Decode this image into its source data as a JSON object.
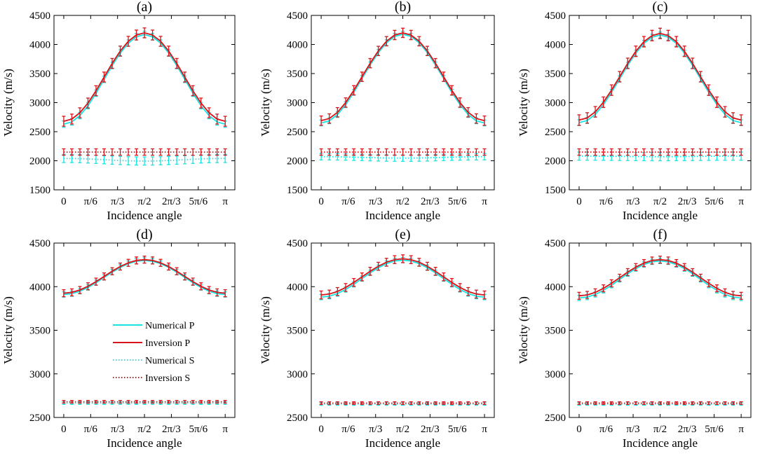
{
  "figure": {
    "x_tick_labels": [
      "0",
      "π/6",
      "π/3",
      "π/2",
      "2π/3",
      "5π/6",
      "π"
    ],
    "legend": [
      {
        "label": "Numerical P",
        "color": "#19e3e0",
        "style": "solid"
      },
      {
        "label": "Inversion P",
        "color": "#d9141a",
        "style": "solid"
      },
      {
        "label": "Numerical S",
        "color": "#19e3e0",
        "style": "dotted"
      },
      {
        "label": "Inversion S",
        "color": "#d9141a",
        "style": "dotted"
      }
    ],
    "colors": {
      "numerical": "#19e3e0",
      "inversion": "#d9141a"
    }
  },
  "chart_data": [
    {
      "type": "line",
      "title": "(a)",
      "xlabel": "Incidence angle",
      "ylabel": "Velocity (m/s)",
      "xlim": [
        -0.19,
        3.33
      ],
      "ylim": [
        1500,
        4500
      ],
      "yticks": [
        1500,
        2000,
        2500,
        3000,
        3500,
        4000,
        4500
      ],
      "P": {
        "min": 2680,
        "max": 4200,
        "num_offset": -50,
        "err_num": 55,
        "err_inv": 85
      },
      "S": {
        "num": 2040,
        "num_var": 45,
        "inv": 2150,
        "err_num": 70,
        "err_inv": 55
      },
      "legend": false
    },
    {
      "type": "line",
      "title": "(b)",
      "xlabel": "Incidence angle",
      "ylabel": "Velocity (m/s)",
      "xlim": [
        -0.19,
        3.33
      ],
      "ylim": [
        1500,
        4500
      ],
      "yticks": [
        1500,
        2000,
        2500,
        3000,
        3500,
        4000,
        4500
      ],
      "P": {
        "min": 2690,
        "max": 4200,
        "num_offset": -40,
        "err_num": 50,
        "err_inv": 80
      },
      "S": {
        "num": 2070,
        "num_var": 25,
        "inv": 2150,
        "err_num": 55,
        "err_inv": 55
      },
      "legend": false
    },
    {
      "type": "line",
      "title": "(c)",
      "xlabel": "Incidence angle",
      "ylabel": "Velocity (m/s)",
      "xlim": [
        -0.19,
        3.33
      ],
      "ylim": [
        1500,
        4500
      ],
      "yticks": [
        1500,
        2000,
        2500,
        3000,
        3500,
        4000,
        4500
      ],
      "P": {
        "min": 2700,
        "max": 4190,
        "num_offset": -45,
        "err_num": 50,
        "err_inv": 90
      },
      "S": {
        "num": 2080,
        "num_var": 10,
        "inv": 2150,
        "err_num": 70,
        "err_inv": 55
      },
      "legend": false
    },
    {
      "type": "line",
      "title": "(d)",
      "xlabel": "Incidence angle",
      "ylabel": "Velocity (m/s)",
      "xlim": [
        -0.19,
        3.33
      ],
      "ylim": [
        2500,
        4500
      ],
      "yticks": [
        2500,
        3000,
        3500,
        4000,
        4500
      ],
      "P": {
        "min": 3925,
        "max": 4310,
        "num_offset": -15,
        "err_num": 30,
        "err_inv": 40
      },
      "S": {
        "num": 2665,
        "num_var": 0,
        "inv": 2680,
        "err_num": 15,
        "err_inv": 15
      },
      "legend": true
    },
    {
      "type": "line",
      "title": "(e)",
      "xlabel": "Incidence angle",
      "ylabel": "Velocity (m/s)",
      "xlim": [
        -0.19,
        3.33
      ],
      "ylim": [
        2500,
        4500
      ],
      "yticks": [
        2500,
        3000,
        3500,
        4000,
        4500
      ],
      "P": {
        "min": 3905,
        "max": 4320,
        "num_offset": -25,
        "err_num": 30,
        "err_inv": 45
      },
      "S": {
        "num": 2655,
        "num_var": 0,
        "inv": 2665,
        "err_num": 15,
        "err_inv": 15
      },
      "legend": false
    },
    {
      "type": "line",
      "title": "(f)",
      "xlabel": "Incidence angle",
      "ylabel": "Velocity (m/s)",
      "xlim": [
        -0.19,
        3.33
      ],
      "ylim": [
        2500,
        4500
      ],
      "yticks": [
        2500,
        3000,
        3500,
        4000,
        4500
      ],
      "P": {
        "min": 3895,
        "max": 4310,
        "num_offset": -25,
        "err_num": 30,
        "err_inv": 40
      },
      "S": {
        "num": 2655,
        "num_var": 0,
        "inv": 2665,
        "err_num": 15,
        "err_inv": 15
      },
      "legend": false
    }
  ]
}
